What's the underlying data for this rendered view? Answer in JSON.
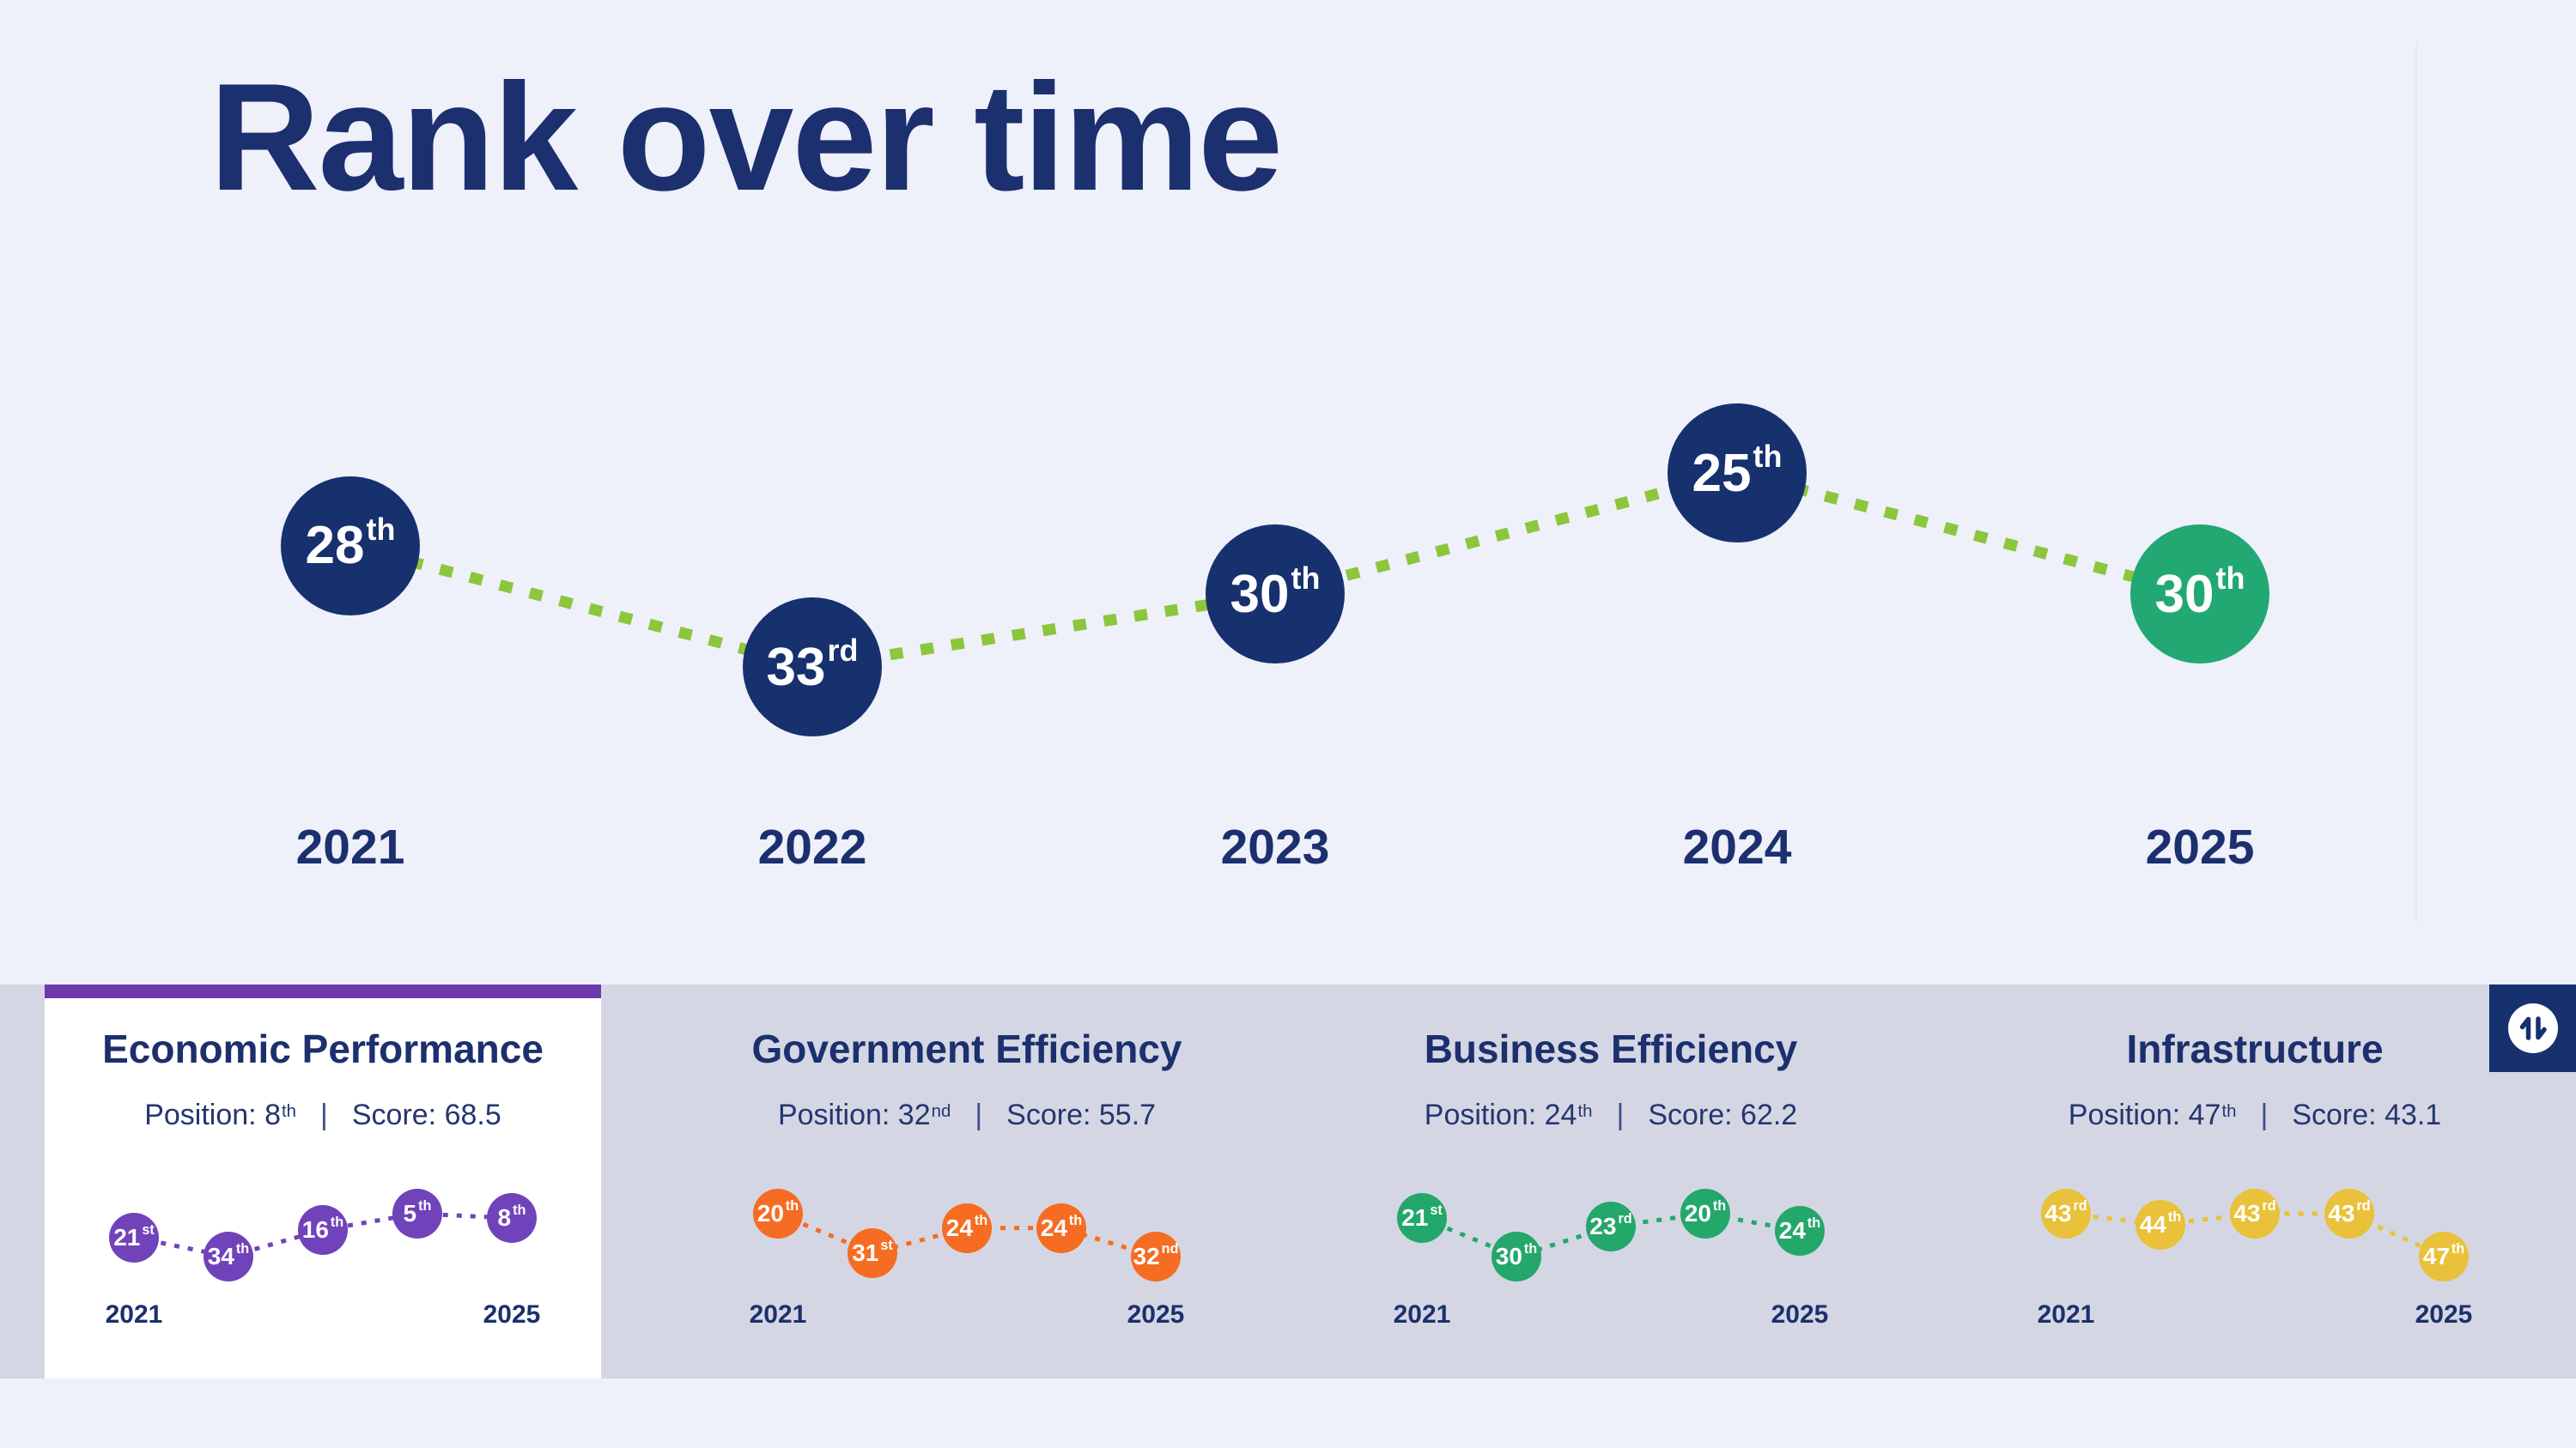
{
  "title": "Rank over time",
  "colors": {
    "background": "#eef0fa",
    "band": "#d4d7e3",
    "card_background": "#ffffff",
    "text_navy": "#1c2f6e",
    "point_navy": "#17306e",
    "current_green": "#21a873",
    "lime_line": "#8cc63c"
  },
  "labels": {
    "position": "Position:",
    "score": "Score:",
    "separator": "|"
  },
  "chart_data": [
    {
      "type": "line",
      "name": "overall-rank",
      "title": "Rank over time",
      "x": [
        "2021",
        "2022",
        "2023",
        "2024",
        "2025"
      ],
      "values": [
        28,
        33,
        30,
        25,
        30
      ],
      "ordinals": [
        "28th",
        "33rd",
        "30th",
        "25th",
        "30th"
      ],
      "y_inverted": true,
      "line_style": "dotted",
      "line_color": "#8cc63c",
      "point_color": "#17306e",
      "current_index": 4,
      "current_point_color": "#21a873",
      "x_labels_shown": [
        "2021",
        "2022",
        "2023",
        "2024",
        "2025"
      ]
    },
    {
      "type": "line",
      "name": "economic-performance",
      "title": "Economic Performance",
      "x": [
        "2021",
        "2022",
        "2023",
        "2024",
        "2025"
      ],
      "values": [
        21,
        34,
        16,
        5,
        8
      ],
      "ordinals": [
        "21st",
        "34th",
        "16th",
        "5th",
        "8th"
      ],
      "y_inverted": true,
      "line_style": "dotted",
      "line_color": "#7143ba",
      "point_color": "#7143ba",
      "x_labels_shown": [
        "2021",
        "2025"
      ]
    },
    {
      "type": "line",
      "name": "government-efficiency",
      "title": "Government Efficiency",
      "x": [
        "2021",
        "2022",
        "2023",
        "2024",
        "2025"
      ],
      "values": [
        20,
        31,
        24,
        24,
        32
      ],
      "ordinals": [
        "20th",
        "31st",
        "24th",
        "24th",
        "32nd"
      ],
      "y_inverted": true,
      "line_style": "dotted",
      "line_color": "#f66c22",
      "point_color": "#f66c22",
      "x_labels_shown": [
        "2021",
        "2025"
      ]
    },
    {
      "type": "line",
      "name": "business-efficiency",
      "title": "Business Efficiency",
      "x": [
        "2021",
        "2022",
        "2023",
        "2024",
        "2025"
      ],
      "values": [
        21,
        30,
        23,
        20,
        24
      ],
      "ordinals": [
        "21st",
        "30th",
        "23rd",
        "20th",
        "24th"
      ],
      "y_inverted": true,
      "line_style": "dotted",
      "line_color": "#24a76b",
      "point_color": "#24a76b",
      "x_labels_shown": [
        "2021",
        "2025"
      ]
    },
    {
      "type": "line",
      "name": "infrastructure",
      "title": "Infrastructure",
      "x": [
        "2021",
        "2022",
        "2023",
        "2024",
        "2025"
      ],
      "values": [
        43,
        44,
        43,
        43,
        47
      ],
      "ordinals": [
        "43rd",
        "44th",
        "43rd",
        "43rd",
        "47th"
      ],
      "y_inverted": true,
      "line_style": "dotted",
      "line_color": "#e9c13a",
      "point_color": "#e9c13a",
      "x_labels_shown": [
        "2021",
        "2025"
      ]
    }
  ],
  "cards": [
    {
      "title": "Economic Performance",
      "slug": "economic-performance",
      "selected": true,
      "accent_color": "#6c3aad",
      "color": "#7143ba",
      "position_ordinal": "8th",
      "score": "68.5"
    },
    {
      "title": "Government Efficiency",
      "slug": "government-efficiency",
      "selected": false,
      "accent_color": "#f66c22",
      "color": "#f66c22",
      "position_ordinal": "32nd",
      "score": "55.7"
    },
    {
      "title": "Business Efficiency",
      "slug": "business-efficiency",
      "selected": false,
      "accent_color": "#24a76b",
      "color": "#24a76b",
      "position_ordinal": "24th",
      "score": "62.2"
    },
    {
      "title": "Infrastructure",
      "slug": "infrastructure",
      "selected": false,
      "accent_color": "#e9c13a",
      "color": "#e9c13a",
      "position_ordinal": "47th",
      "score": "43.1"
    }
  ],
  "sort_button": {
    "background": "#17306e",
    "icon": "swap-vertical-icon"
  }
}
